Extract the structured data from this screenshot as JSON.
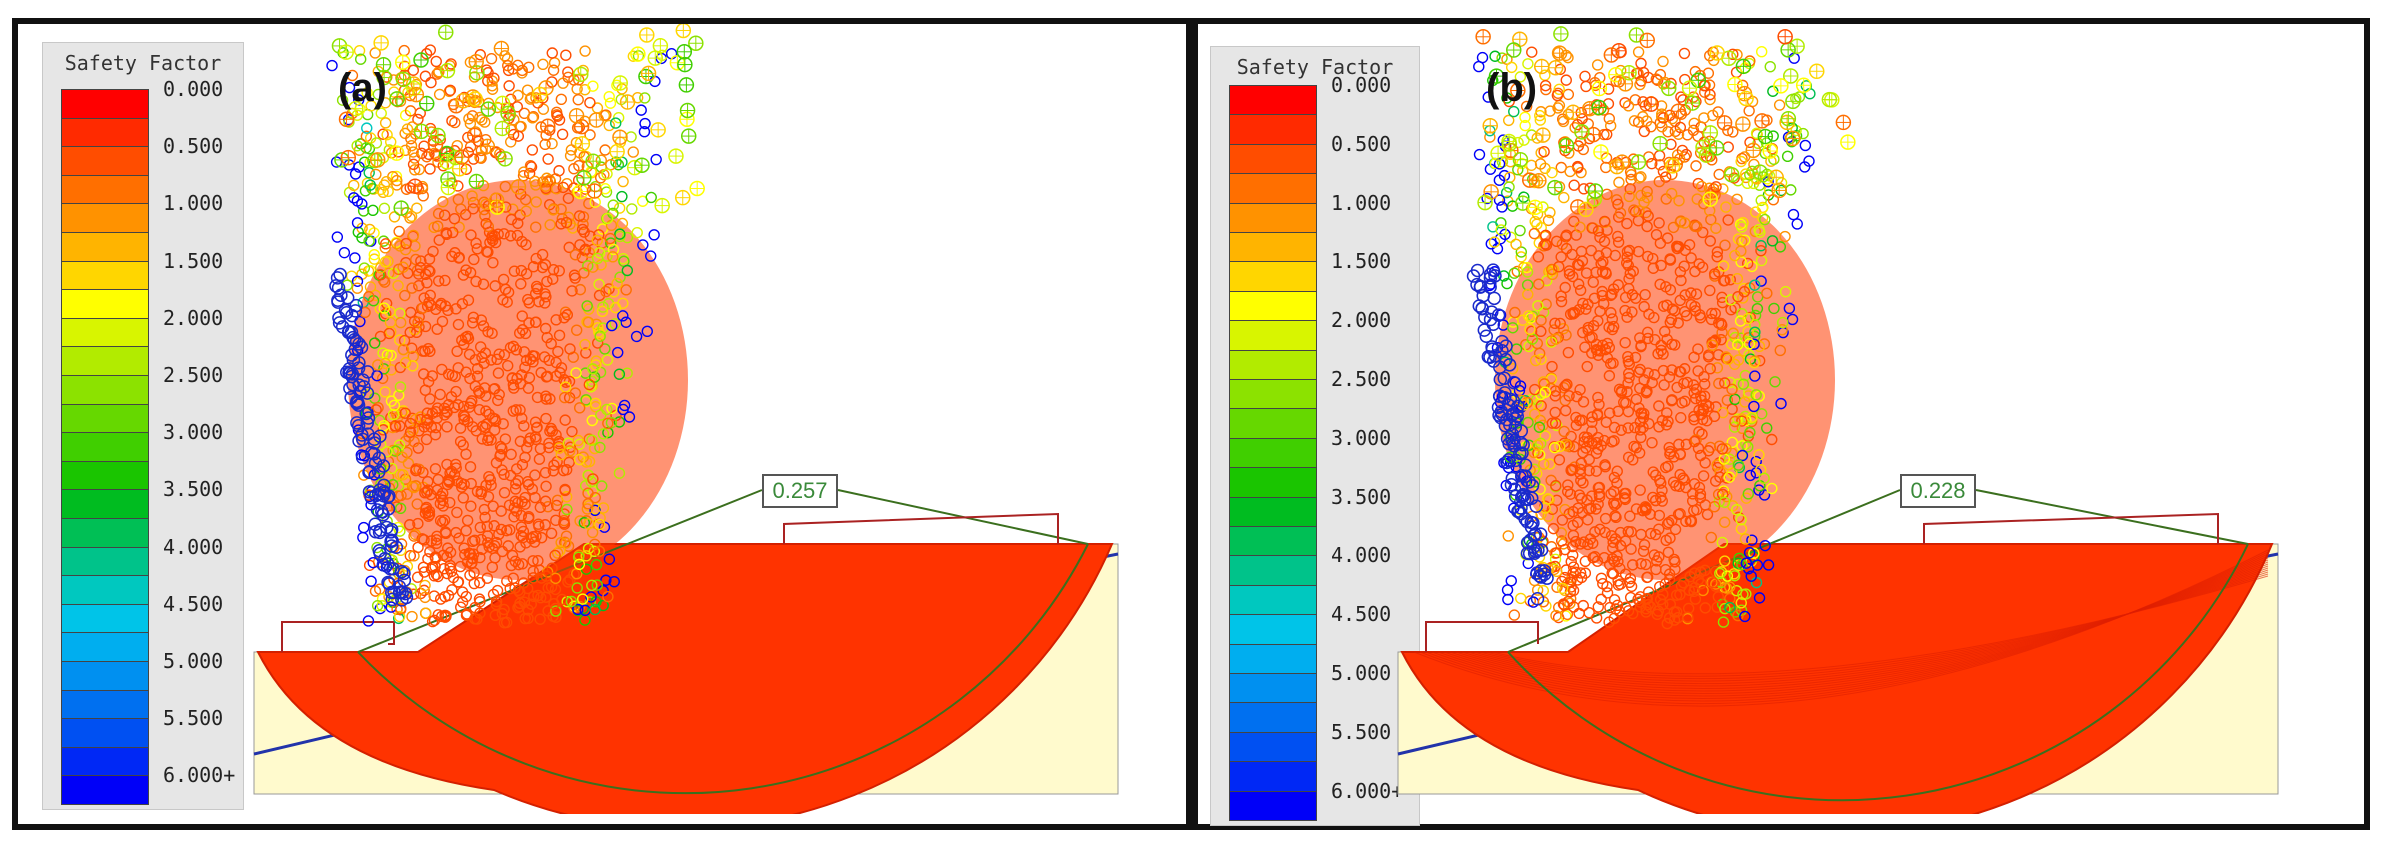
{
  "legend": {
    "title": "Safety Factor",
    "ticks": [
      "0.000",
      "0.500",
      "1.000",
      "1.500",
      "2.000",
      "2.500",
      "3.000",
      "3.500",
      "4.000",
      "4.500",
      "5.000",
      "5.500",
      "6.000+"
    ],
    "colors": [
      "#ff0000",
      "#ff2a00",
      "#ff4d00",
      "#ff6f00",
      "#ff9200",
      "#ffb400",
      "#ffd600",
      "#ffff00",
      "#d8f500",
      "#b2eb00",
      "#8ce200",
      "#66d800",
      "#40cf00",
      "#1ac500",
      "#00bc20",
      "#00bf55",
      "#00c38a",
      "#00c8bf",
      "#00c4e8",
      "#00aeef",
      "#0090f0",
      "#0070f0",
      "#0050f2",
      "#0028f5",
      "#0000f8"
    ]
  },
  "panels": [
    {
      "id": "a",
      "label": "(a)",
      "factor_of_safety": "0.257"
    },
    {
      "id": "b",
      "label": "(b)",
      "factor_of_safety": "0.228"
    }
  ],
  "colors": {
    "slope_fill": "#fffacd",
    "failure_mass": "#ff3300",
    "frame": "#111111"
  }
}
